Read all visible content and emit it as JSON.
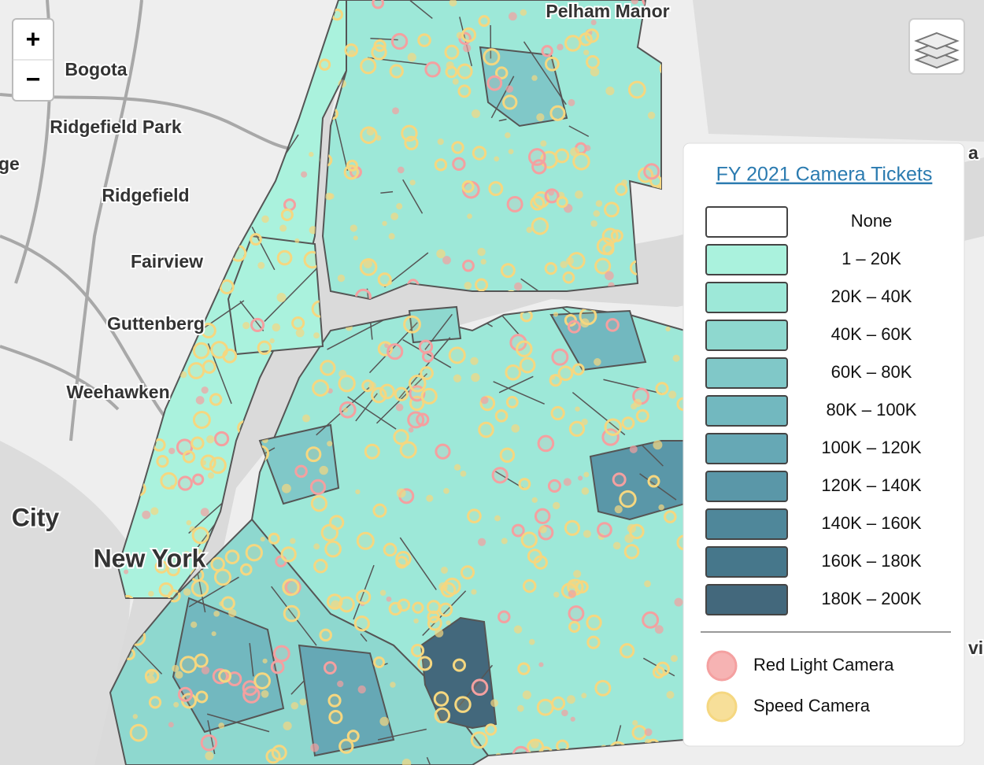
{
  "map": {
    "zoom": {
      "in": "+",
      "out": "−"
    },
    "labels": [
      "Pelham Manor",
      "Bogota",
      "Ridgefield Park",
      "ge",
      "Ridgefield",
      "Fairview",
      "Guttenberg",
      "Weehawken",
      "City",
      "New York",
      "a",
      "vi"
    ]
  },
  "legend": {
    "title": "FY 2021 Camera Tickets",
    "classes": [
      {
        "label": "None",
        "color": "#ffffff"
      },
      {
        "label": "1 – 20K",
        "color": "#aaf2dd"
      },
      {
        "label": "20K – 40K",
        "color": "#9de8d8"
      },
      {
        "label": "40K – 60K",
        "color": "#8ed8cf"
      },
      {
        "label": "60K – 80K",
        "color": "#80c8c8"
      },
      {
        "label": "80K – 100K",
        "color": "#72b8bf"
      },
      {
        "label": "100K – 120K",
        "color": "#66a8b5"
      },
      {
        "label": "120K – 140K",
        "color": "#5a97a8"
      },
      {
        "label": "140K – 160K",
        "color": "#4f879a"
      },
      {
        "label": "160K – 180K",
        "color": "#46778b"
      },
      {
        "label": "180K – 200K",
        "color": "#43687c"
      }
    ],
    "markers": [
      {
        "label": "Red Light Camera",
        "color": "#f4a0a0"
      },
      {
        "label": "Speed Camera",
        "color": "#f5d780"
      }
    ]
  }
}
